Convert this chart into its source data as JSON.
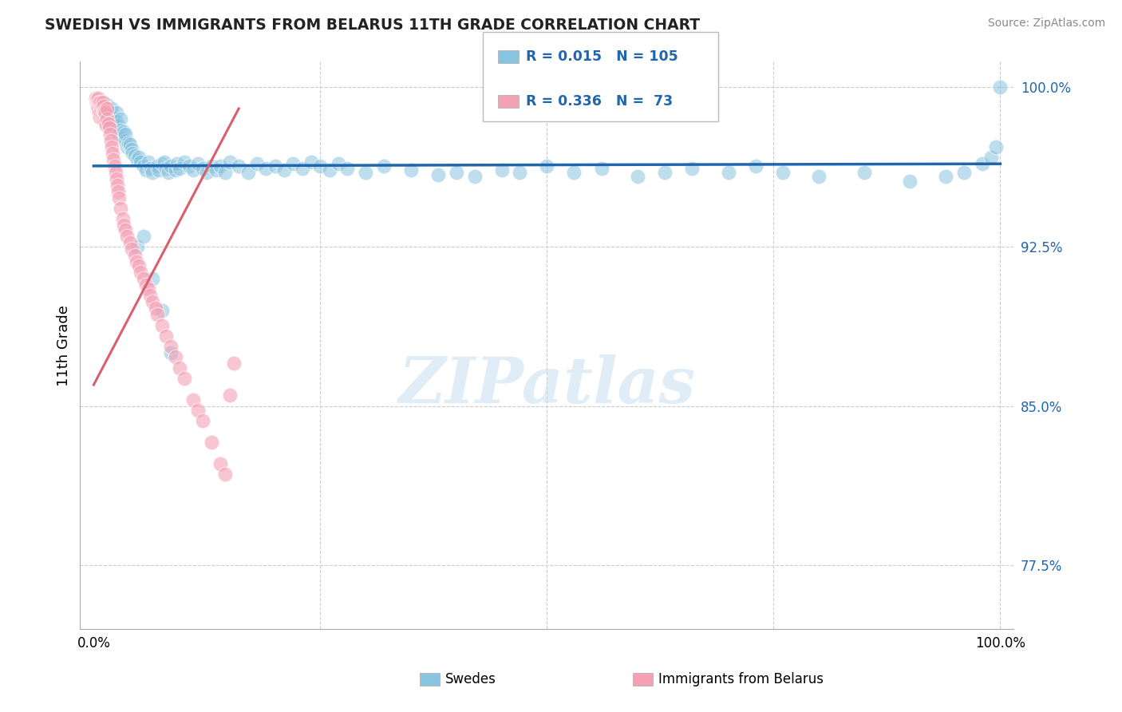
{
  "title": "SWEDISH VS IMMIGRANTS FROM BELARUS 11TH GRADE CORRELATION CHART",
  "source": "Source: ZipAtlas.com",
  "ylabel": "11th Grade",
  "watermark": "ZIPatlas",
  "blue_label": "Swedes",
  "pink_label": "Immigrants from Belarus",
  "blue_R": 0.015,
  "blue_N": 105,
  "pink_R": 0.336,
  "pink_N": 73,
  "blue_color": "#89c4e1",
  "pink_color": "#f4a0b5",
  "blue_line_color": "#2166ac",
  "pink_line_color": "#d95f6e",
  "xlim": [
    -0.01,
    1.01
  ],
  "ylim": [
    0.745,
    1.01
  ],
  "yticks": [
    0.775,
    0.85,
    0.925,
    1.0
  ],
  "ytick_labels": [
    "77.5%",
    "85.0%",
    "92.5%",
    "100.0%"
  ],
  "xtick_labels": [
    "0.0%",
    "",
    "",
    "",
    "100.0%"
  ],
  "blue_scatter_x": [
    0.005,
    0.008,
    0.01,
    0.012,
    0.013,
    0.015,
    0.015,
    0.016,
    0.017,
    0.018,
    0.019,
    0.02,
    0.02,
    0.022,
    0.023,
    0.025,
    0.025,
    0.026,
    0.027,
    0.028,
    0.03,
    0.03,
    0.032,
    0.033,
    0.035,
    0.035,
    0.037,
    0.038,
    0.04,
    0.042,
    0.043,
    0.045,
    0.048,
    0.05,
    0.052,
    0.055,
    0.058,
    0.06,
    0.063,
    0.065,
    0.07,
    0.072,
    0.075,
    0.078,
    0.08,
    0.082,
    0.085,
    0.09,
    0.092,
    0.095,
    0.1,
    0.105,
    0.11,
    0.115,
    0.12,
    0.125,
    0.13,
    0.135,
    0.14,
    0.145,
    0.15,
    0.16,
    0.17,
    0.18,
    0.19,
    0.2,
    0.21,
    0.22,
    0.23,
    0.24,
    0.25,
    0.26,
    0.27,
    0.28,
    0.3,
    0.32,
    0.35,
    0.38,
    0.4,
    0.42,
    0.45,
    0.47,
    0.5,
    0.53,
    0.56,
    0.6,
    0.63,
    0.66,
    0.7,
    0.73,
    0.76,
    0.8,
    0.85,
    0.9,
    0.94,
    0.96,
    0.98,
    0.99,
    0.995,
    1.0,
    0.048,
    0.055,
    0.065,
    0.075,
    0.085
  ],
  "blue_scatter_y": [
    0.99,
    0.988,
    0.992,
    0.985,
    0.988,
    0.992,
    0.986,
    0.984,
    0.989,
    0.985,
    0.988,
    0.99,
    0.982,
    0.986,
    0.983,
    0.988,
    0.984,
    0.98,
    0.982,
    0.978,
    0.985,
    0.98,
    0.976,
    0.979,
    0.975,
    0.978,
    0.972,
    0.974,
    0.973,
    0.971,
    0.969,
    0.968,
    0.966,
    0.967,
    0.965,
    0.963,
    0.961,
    0.965,
    0.962,
    0.96,
    0.963,
    0.961,
    0.964,
    0.965,
    0.962,
    0.96,
    0.963,
    0.961,
    0.964,
    0.962,
    0.965,
    0.963,
    0.961,
    0.964,
    0.962,
    0.96,
    0.963,
    0.961,
    0.963,
    0.96,
    0.965,
    0.963,
    0.96,
    0.964,
    0.962,
    0.963,
    0.961,
    0.964,
    0.962,
    0.965,
    0.963,
    0.961,
    0.964,
    0.962,
    0.96,
    0.963,
    0.961,
    0.959,
    0.96,
    0.958,
    0.961,
    0.96,
    0.963,
    0.96,
    0.962,
    0.958,
    0.96,
    0.962,
    0.96,
    0.963,
    0.96,
    0.958,
    0.96,
    0.956,
    0.958,
    0.96,
    0.964,
    0.967,
    0.972,
    1.0,
    0.925,
    0.93,
    0.91,
    0.895,
    0.875
  ],
  "pink_scatter_x": [
    0.002,
    0.003,
    0.004,
    0.004,
    0.005,
    0.005,
    0.005,
    0.006,
    0.006,
    0.007,
    0.007,
    0.008,
    0.008,
    0.008,
    0.009,
    0.009,
    0.01,
    0.01,
    0.01,
    0.011,
    0.011,
    0.012,
    0.012,
    0.013,
    0.013,
    0.014,
    0.015,
    0.015,
    0.016,
    0.017,
    0.018,
    0.019,
    0.02,
    0.021,
    0.022,
    0.023,
    0.024,
    0.025,
    0.026,
    0.027,
    0.028,
    0.03,
    0.032,
    0.033,
    0.035,
    0.037,
    0.04,
    0.042,
    0.045,
    0.047,
    0.05,
    0.052,
    0.055,
    0.058,
    0.06,
    0.062,
    0.065,
    0.068,
    0.07,
    0.075,
    0.08,
    0.085,
    0.09,
    0.095,
    0.1,
    0.11,
    0.115,
    0.12,
    0.13,
    0.14,
    0.145,
    0.15,
    0.155
  ],
  "pink_scatter_y": [
    0.995,
    0.993,
    0.991,
    0.994,
    0.992,
    0.99,
    0.995,
    0.993,
    0.988,
    0.991,
    0.986,
    0.99,
    0.988,
    0.993,
    0.987,
    0.991,
    0.989,
    0.985,
    0.993,
    0.988,
    0.991,
    0.986,
    0.989,
    0.984,
    0.988,
    0.982,
    0.985,
    0.99,
    0.983,
    0.981,
    0.978,
    0.975,
    0.972,
    0.969,
    0.966,
    0.963,
    0.96,
    0.957,
    0.954,
    0.951,
    0.948,
    0.943,
    0.938,
    0.935,
    0.933,
    0.93,
    0.927,
    0.924,
    0.921,
    0.918,
    0.916,
    0.913,
    0.91,
    0.907,
    0.905,
    0.902,
    0.899,
    0.896,
    0.893,
    0.888,
    0.883,
    0.878,
    0.873,
    0.868,
    0.863,
    0.853,
    0.848,
    0.843,
    0.833,
    0.823,
    0.818,
    0.855,
    0.87
  ],
  "blue_trendline": [
    0.963,
    0.964
  ],
  "pink_trendline_x": [
    0.0,
    0.16
  ],
  "pink_trendline_y": [
    0.86,
    0.99
  ]
}
